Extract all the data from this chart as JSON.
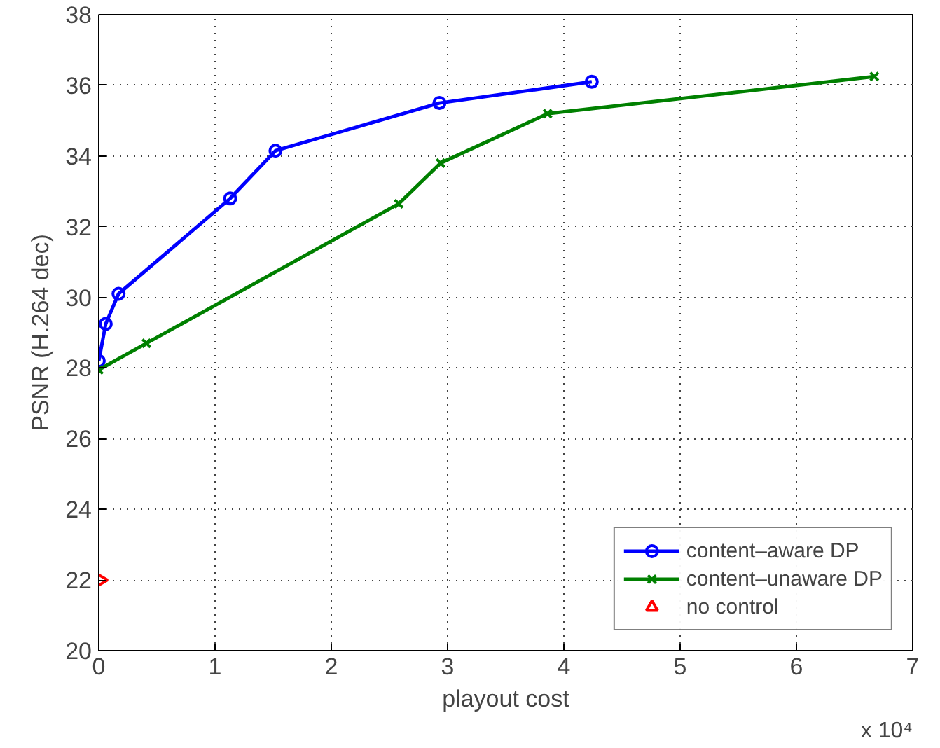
{
  "chart_data": {
    "type": "line",
    "xlabel": "playout cost",
    "ylabel": "PSNR (H.264 dec)",
    "xlim": [
      0,
      7
    ],
    "ylim": [
      20,
      38
    ],
    "xticks": [
      0,
      1,
      2,
      3,
      4,
      5,
      6,
      7
    ],
    "yticks": [
      20,
      22,
      24,
      26,
      28,
      30,
      32,
      34,
      36,
      38
    ],
    "grid": true,
    "legend": "bottom right",
    "line_style": "solid",
    "annotations": [
      "x 10⁴"
    ],
    "series": [
      {
        "name": "content–aware DP",
        "color": "#0000ff",
        "marker": "circle",
        "x": [
          0.0,
          0.06,
          0.17,
          1.13,
          1.52,
          2.93,
          4.24
        ],
        "values": [
          28.2,
          29.25,
          30.1,
          32.8,
          34.15,
          35.5,
          36.1
        ]
      },
      {
        "name": "content–unaware DP",
        "color": "#008000",
        "marker": "cross",
        "x": [
          0.0,
          0.41,
          2.58,
          2.94,
          3.86,
          6.67
        ],
        "values": [
          27.95,
          28.7,
          32.65,
          33.8,
          35.2,
          36.25
        ]
      },
      {
        "name": "no control",
        "type": "scatter",
        "color": "#ff0000",
        "marker": "triangle",
        "x": [
          0.0
        ],
        "values": [
          22.0
        ]
      }
    ]
  }
}
